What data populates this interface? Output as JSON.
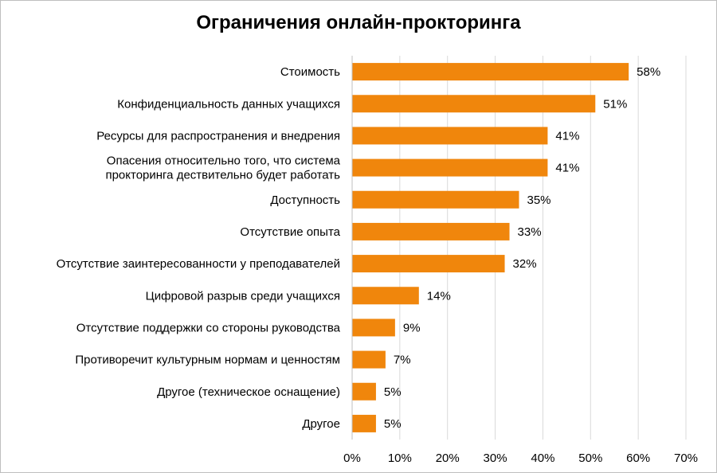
{
  "chart_data": {
    "type": "bar",
    "orientation": "horizontal",
    "title": "Ограничения онлайн-прокторинга",
    "categories": [
      [
        "Стоимость"
      ],
      [
        "Конфиденциальность данных учащихся"
      ],
      [
        "Ресурсы для распространения и внедрения"
      ],
      [
        "Опасения относительно того, что  система",
        "прокторинга дествительно будет работать"
      ],
      [
        "Доступность"
      ],
      [
        "Отсутствие  опыта"
      ],
      [
        "Отсутствие  заинтересованности у преподавателей"
      ],
      [
        "Цифровой разрыв среди учащихся"
      ],
      [
        "Отсутствие  поддержки со стороны руководства"
      ],
      [
        "Противоречит культурным нормам и ценностям"
      ],
      [
        "Другое  (техническое оснащение)"
      ],
      [
        "Другое"
      ]
    ],
    "values": [
      58,
      51,
      41,
      41,
      35,
      33,
      32,
      14,
      9,
      7,
      5,
      5
    ],
    "value_labels": [
      "58%",
      "51%",
      "41%",
      "41%",
      "35%",
      "33%",
      "32%",
      "14%",
      "9%",
      "7%",
      "5%",
      "5%"
    ],
    "xlim": [
      0,
      70
    ],
    "x_ticks": [
      "0%",
      "10%",
      "20%",
      "30%",
      "40%",
      "50%",
      "60%",
      "70%"
    ],
    "xlabel": "",
    "ylabel": "",
    "grid": "vertical",
    "bar_color": "#F0860C",
    "grid_color": "#D9D9D9"
  }
}
